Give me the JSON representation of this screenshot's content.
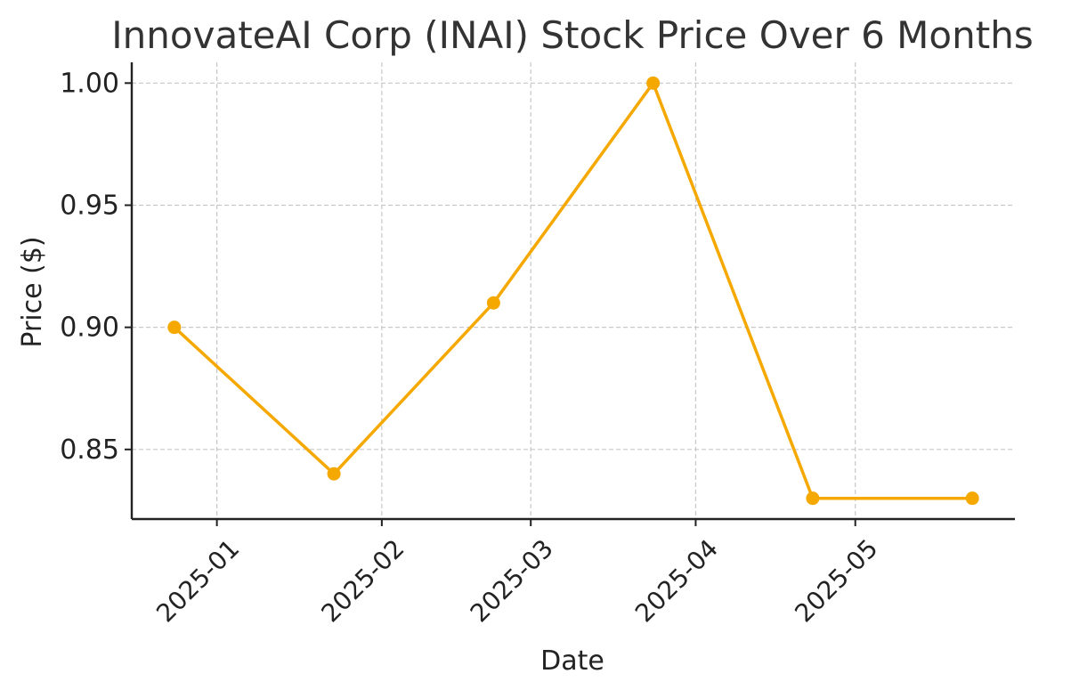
{
  "chart_data": {
    "type": "line",
    "title": "InnovateAI Corp (INAI) Stock Price Over 6 Months",
    "xlabel": "Date",
    "ylabel": "Price ($)",
    "x": [
      "2024-12-24",
      "2025-01-23",
      "2025-02-22",
      "2025-03-24",
      "2025-04-23",
      "2025-05-23"
    ],
    "series": [
      {
        "values": [
          0.9,
          0.84,
          0.91,
          1.0,
          0.83,
          0.83
        ],
        "color": "#f5a800",
        "marker": "circle"
      }
    ],
    "xticks": [
      {
        "date": "2025-01-01",
        "label": "2025-01"
      },
      {
        "date": "2025-02-01",
        "label": "2025-02"
      },
      {
        "date": "2025-03-01",
        "label": "2025-03"
      },
      {
        "date": "2025-04-01",
        "label": "2025-04"
      },
      {
        "date": "2025-05-01",
        "label": "2025-05"
      }
    ],
    "yticks": [
      {
        "value": 0.85,
        "label": "0.85"
      },
      {
        "value": 0.9,
        "label": "0.90"
      },
      {
        "value": 0.95,
        "label": "0.95"
      },
      {
        "value": 1.0,
        "label": "1.00"
      }
    ],
    "xlim": [
      "2024-12-16",
      "2025-05-31"
    ],
    "ylim": [
      0.8215,
      1.0085
    ],
    "grid": true,
    "legend": "none"
  }
}
